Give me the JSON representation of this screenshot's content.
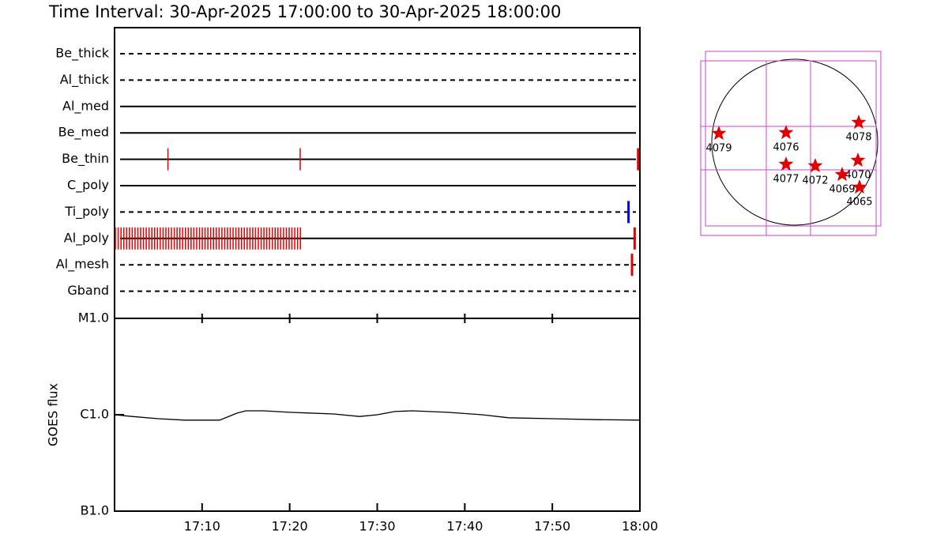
{
  "chart_data": {
    "type": "line",
    "title": "Time Interval: 30-Apr-2025 17:00:00 to 30-Apr-2025 18:00:00",
    "ylabel": "GOES flux",
    "xlim": [
      0,
      60
    ],
    "xticks": [
      {
        "value": 10,
        "label": "17:10"
      },
      {
        "value": 20,
        "label": "17:20"
      },
      {
        "value": 30,
        "label": "17:30"
      },
      {
        "value": 40,
        "label": "17:40"
      },
      {
        "value": 50,
        "label": "17:50"
      },
      {
        "value": 60,
        "label": "18:00"
      }
    ],
    "ylim": [
      1e-07,
      1e-05
    ],
    "ylog": true,
    "yticks": [
      {
        "value": 1e-05,
        "label": "M1.0"
      },
      {
        "value": 1e-06,
        "label": "C1.0"
      },
      {
        "value": 1e-07,
        "label": "B1.0"
      }
    ],
    "x": [
      0,
      2,
      5,
      8,
      12,
      14,
      15,
      17,
      20,
      25,
      28,
      30,
      32,
      34,
      38,
      42,
      45,
      50,
      55,
      60
    ],
    "values": [
      1e-06,
      9.6e-07,
      9.1e-07,
      8.8e-07,
      8.8e-07,
      1.04e-06,
      1.1e-06,
      1.1e-06,
      1.06e-06,
      1.02e-06,
      9.6e-07,
      1e-06,
      1.08e-06,
      1.1e-06,
      1.06e-06,
      1e-06,
      9.3e-07,
      9.1e-07,
      8.9e-07,
      8.8e-07
    ],
    "color": "#000000",
    "filter_rows": [
      {
        "name": "Be_thick",
        "line": "dashed",
        "color": "#e00000",
        "exposures": []
      },
      {
        "name": "Al_thick",
        "line": "dashed",
        "color": "#e00000",
        "exposures": []
      },
      {
        "name": "Al_med",
        "line": "solid",
        "color": "#e00000",
        "exposures": []
      },
      {
        "name": "Be_med",
        "line": "solid",
        "color": "#e00000",
        "exposures": []
      },
      {
        "name": "Be_thin",
        "line": "solid",
        "color": "#e00000",
        "exposures": [
          6.1,
          21.2,
          59.8
        ]
      },
      {
        "name": "C_poly",
        "line": "solid",
        "color": "#e00000",
        "exposures": []
      },
      {
        "name": "Ti_poly",
        "line": "dashed",
        "color": "#0000e0",
        "exposures": [
          58.7
        ]
      },
      {
        "name": "Al_poly",
        "line": "solid",
        "color": "#e00000",
        "exposures": [
          0.1,
          0.42,
          0.74,
          1.06,
          1.38,
          1.7,
          2.02,
          2.34,
          2.66,
          2.98,
          3.3,
          3.62,
          3.94,
          4.26,
          4.58,
          4.9,
          5.22,
          5.54,
          5.86,
          6.18,
          6.5,
          6.82,
          7.14,
          7.46,
          7.78,
          8.1,
          8.42,
          8.74,
          9.06,
          9.38,
          9.7,
          10.02,
          10.34,
          10.66,
          10.98,
          11.3,
          11.62,
          11.94,
          12.26,
          12.58,
          12.9,
          13.22,
          13.54,
          13.86,
          14.18,
          14.5,
          14.82,
          15.14,
          15.46,
          15.78,
          16.1,
          16.42,
          16.74,
          17.06,
          17.38,
          17.7,
          18.02,
          18.34,
          18.66,
          18.98,
          19.3,
          19.62,
          19.94,
          20.26,
          20.58,
          20.9,
          21.22,
          59.4
        ]
      },
      {
        "name": "Al_mesh",
        "line": "dashed",
        "color": "#e00000",
        "exposures": [
          59.1
        ]
      },
      {
        "name": "Gband",
        "line": "dashed",
        "color": "#e00000",
        "exposures": []
      }
    ]
  },
  "sun_map": {
    "regions": [
      "4079",
      "4076",
      "4078",
      "4077",
      "4072",
      "4070",
      "4069",
      "4065"
    ]
  }
}
